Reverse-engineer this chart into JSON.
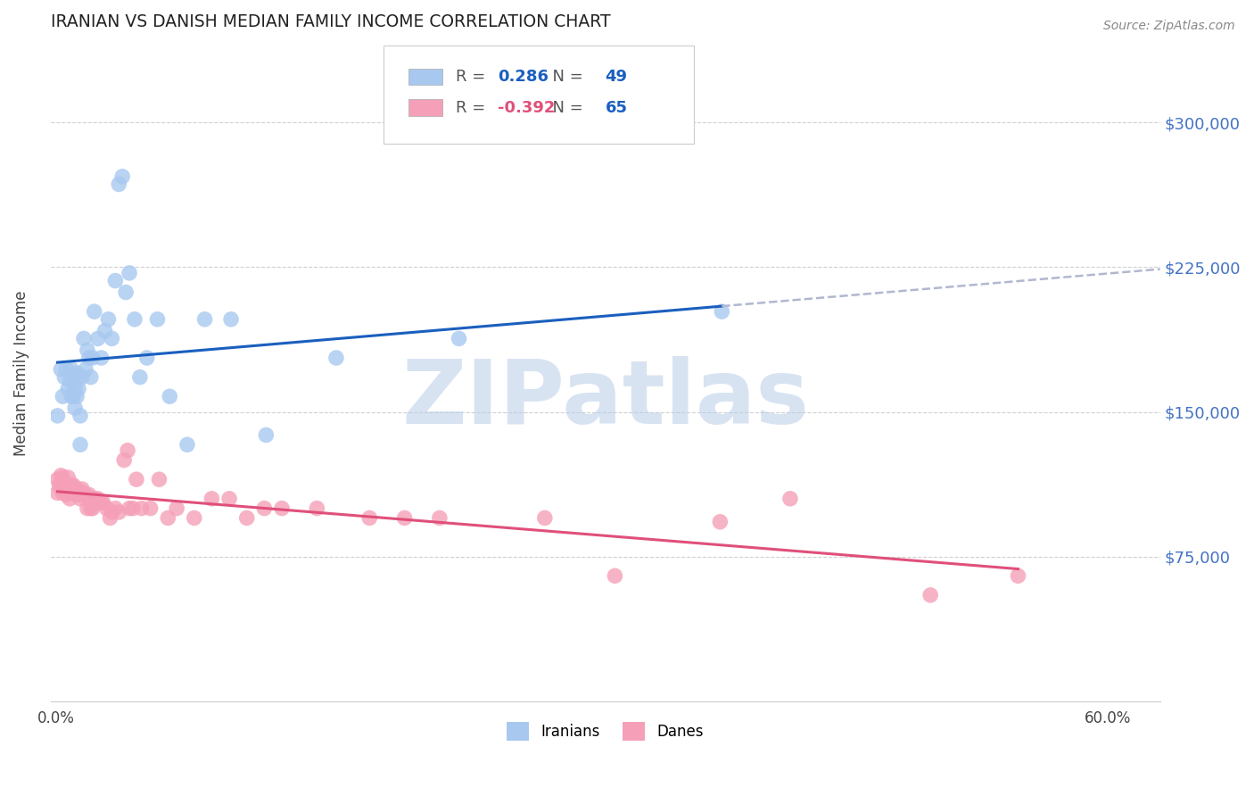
{
  "title": "IRANIAN VS DANISH MEDIAN FAMILY INCOME CORRELATION CHART",
  "source": "Source: ZipAtlas.com",
  "ylabel": "Median Family Income",
  "xlabel_ticks": [
    "0.0%",
    "",
    "",
    "",
    "",
    "",
    "60.0%"
  ],
  "xlabel_vals": [
    0.0,
    0.1,
    0.2,
    0.3,
    0.4,
    0.5,
    0.6
  ],
  "ytick_labels": [
    "$75,000",
    "$150,000",
    "$225,000",
    "$300,000"
  ],
  "ytick_vals": [
    75000,
    150000,
    225000,
    300000
  ],
  "ymin": 0,
  "ymax": 340000,
  "xmin": -0.003,
  "xmax": 0.63,
  "iranians_R": 0.286,
  "iranians_N": 49,
  "danes_R": -0.392,
  "danes_N": 65,
  "iranians_color": "#a8c8f0",
  "iranians_line_color": "#1a5fbf",
  "danes_color": "#f5a0b8",
  "danes_line_color": "#e0507a",
  "dashed_line_color": "#b0b8d0",
  "watermark": "ZIPatlas",
  "watermark_blue": "#b8cce8",
  "watermark_gray": "#b0b8c8",
  "legend_r_color": "#1a5fbf",
  "legend_n_color": "#1a5fbf",
  "iranians_x": [
    0.001,
    0.003,
    0.004,
    0.005,
    0.006,
    0.007,
    0.008,
    0.009,
    0.009,
    0.01,
    0.01,
    0.011,
    0.011,
    0.012,
    0.012,
    0.013,
    0.013,
    0.014,
    0.014,
    0.015,
    0.016,
    0.017,
    0.018,
    0.019,
    0.02,
    0.021,
    0.022,
    0.024,
    0.026,
    0.028,
    0.03,
    0.032,
    0.034,
    0.036,
    0.038,
    0.04,
    0.042,
    0.045,
    0.048,
    0.052,
    0.058,
    0.065,
    0.075,
    0.085,
    0.1,
    0.12,
    0.16,
    0.23,
    0.38
  ],
  "iranians_y": [
    148000,
    172000,
    158000,
    168000,
    172000,
    162000,
    166000,
    158000,
    172000,
    158000,
    168000,
    162000,
    152000,
    170000,
    158000,
    168000,
    162000,
    148000,
    133000,
    168000,
    188000,
    172000,
    182000,
    178000,
    168000,
    178000,
    202000,
    188000,
    178000,
    192000,
    198000,
    188000,
    218000,
    268000,
    272000,
    212000,
    222000,
    198000,
    168000,
    178000,
    198000,
    158000,
    133000,
    198000,
    198000,
    138000,
    178000,
    188000,
    202000
  ],
  "danes_x": [
    0.001,
    0.001,
    0.002,
    0.003,
    0.003,
    0.004,
    0.004,
    0.005,
    0.005,
    0.006,
    0.006,
    0.007,
    0.007,
    0.008,
    0.008,
    0.009,
    0.009,
    0.01,
    0.011,
    0.012,
    0.012,
    0.013,
    0.014,
    0.015,
    0.016,
    0.017,
    0.018,
    0.019,
    0.02,
    0.021,
    0.022,
    0.024,
    0.026,
    0.027,
    0.029,
    0.031,
    0.032,
    0.034,
    0.036,
    0.039,
    0.041,
    0.042,
    0.044,
    0.046,
    0.049,
    0.054,
    0.059,
    0.064,
    0.069,
    0.079,
    0.089,
    0.099,
    0.109,
    0.119,
    0.129,
    0.149,
    0.179,
    0.199,
    0.219,
    0.279,
    0.319,
    0.379,
    0.419,
    0.499,
    0.549
  ],
  "danes_y": [
    108000,
    115000,
    112000,
    110000,
    117000,
    108000,
    116000,
    110000,
    108000,
    112000,
    107000,
    108000,
    116000,
    110000,
    105000,
    112000,
    108000,
    112000,
    108000,
    107000,
    110000,
    107000,
    105000,
    110000,
    108000,
    107000,
    100000,
    107000,
    100000,
    100000,
    105000,
    105000,
    103000,
    103000,
    100000,
    95000,
    98000,
    100000,
    98000,
    125000,
    130000,
    100000,
    100000,
    115000,
    100000,
    100000,
    115000,
    95000,
    100000,
    95000,
    105000,
    105000,
    95000,
    100000,
    100000,
    100000,
    95000,
    95000,
    95000,
    95000,
    65000,
    93000,
    105000,
    55000,
    65000
  ]
}
